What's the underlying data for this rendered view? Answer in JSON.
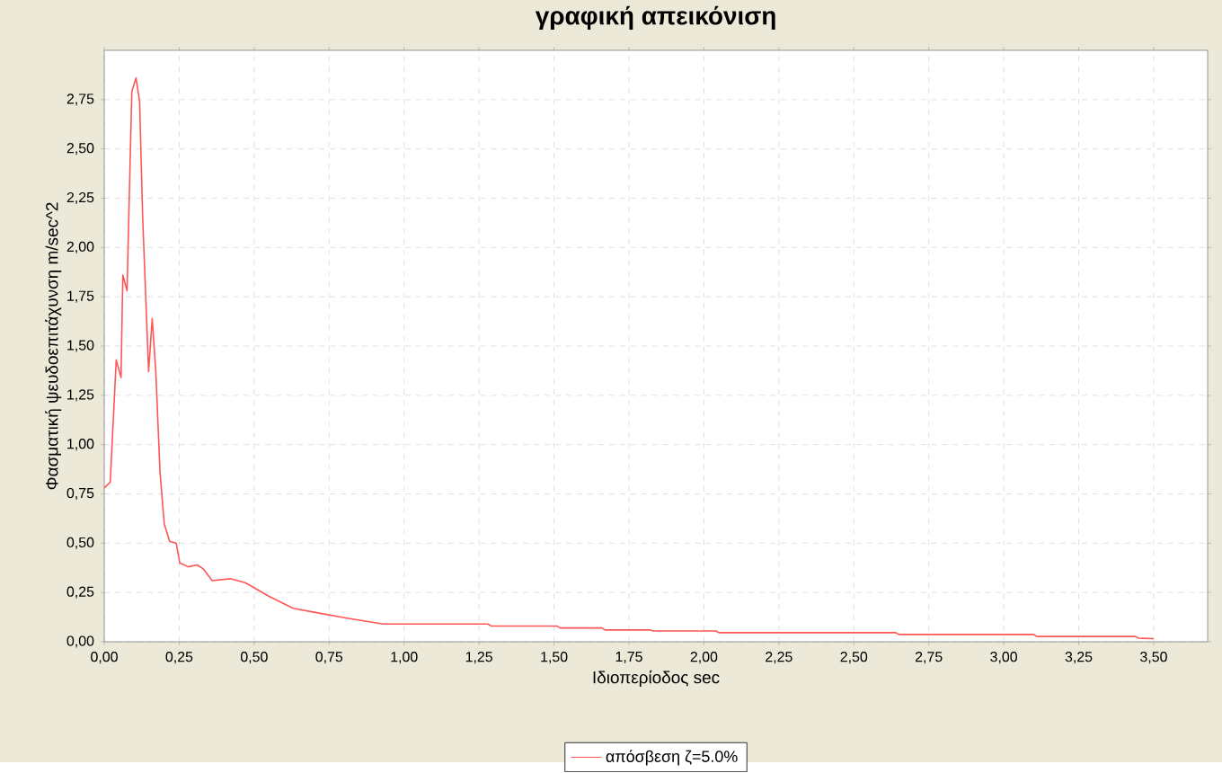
{
  "chart_data": {
    "type": "line",
    "title": "γραφική απεικόνιση",
    "xlabel": "Ιδιοπερίοδος sec",
    "ylabel": "Φασματική ψευδοεπιτάχυνση m/sec^2",
    "xlim": [
      0,
      3.68
    ],
    "ylim": [
      0,
      3.0
    ],
    "xticks": [
      {
        "value": 0,
        "label": "0,00"
      },
      {
        "value": 0.25,
        "label": "0,25"
      },
      {
        "value": 0.5,
        "label": "0,50"
      },
      {
        "value": 0.75,
        "label": "0,75"
      },
      {
        "value": 1.0,
        "label": "1,00"
      },
      {
        "value": 1.25,
        "label": "1,25"
      },
      {
        "value": 1.5,
        "label": "1,50"
      },
      {
        "value": 1.75,
        "label": "1,75"
      },
      {
        "value": 2.0,
        "label": "2,00"
      },
      {
        "value": 2.25,
        "label": "2,25"
      },
      {
        "value": 2.5,
        "label": "2,50"
      },
      {
        "value": 2.75,
        "label": "2,75"
      },
      {
        "value": 3.0,
        "label": "3,00"
      },
      {
        "value": 3.25,
        "label": "3,25"
      },
      {
        "value": 3.5,
        "label": "3,50"
      }
    ],
    "yticks": [
      {
        "value": 0,
        "label": "0,00"
      },
      {
        "value": 0.25,
        "label": "0,25"
      },
      {
        "value": 0.5,
        "label": "0,50"
      },
      {
        "value": 0.75,
        "label": "0,75"
      },
      {
        "value": 1.0,
        "label": "1,00"
      },
      {
        "value": 1.25,
        "label": "1,25"
      },
      {
        "value": 1.5,
        "label": "1,50"
      },
      {
        "value": 1.75,
        "label": "1,75"
      },
      {
        "value": 2.0,
        "label": "2,00"
      },
      {
        "value": 2.25,
        "label": "2,25"
      },
      {
        "value": 2.5,
        "label": "2,50"
      },
      {
        "value": 2.75,
        "label": "2,75"
      }
    ],
    "grid": true,
    "legend": "bottom",
    "marker": "none",
    "line_style": "solid",
    "series": [
      {
        "name": "απόσβεση ζ=5.0%",
        "color": "#ff5555",
        "x": [
          0.0,
          0.02,
          0.04,
          0.056,
          0.062,
          0.076,
          0.092,
          0.106,
          0.118,
          0.128,
          0.148,
          0.16,
          0.172,
          0.186,
          0.2,
          0.218,
          0.24,
          0.252,
          0.28,
          0.31,
          0.33,
          0.36,
          0.42,
          0.47,
          0.55,
          0.63,
          0.7,
          0.81,
          0.93,
          1.28,
          1.29,
          1.51,
          1.52,
          1.66,
          1.67,
          1.82,
          1.83,
          2.04,
          2.05,
          2.64,
          2.65,
          3.1,
          3.11,
          3.44,
          3.45,
          3.5
        ],
        "values": [
          0.78,
          0.81,
          1.43,
          1.34,
          1.86,
          1.78,
          2.79,
          2.86,
          2.74,
          2.16,
          1.37,
          1.64,
          1.37,
          0.86,
          0.6,
          0.51,
          0.5,
          0.4,
          0.38,
          0.39,
          0.37,
          0.31,
          0.32,
          0.3,
          0.23,
          0.17,
          0.15,
          0.12,
          0.09,
          0.09,
          0.08,
          0.08,
          0.07,
          0.07,
          0.06,
          0.06,
          0.055,
          0.055,
          0.046,
          0.046,
          0.037,
          0.037,
          0.027,
          0.027,
          0.018,
          0.016
        ]
      }
    ]
  }
}
